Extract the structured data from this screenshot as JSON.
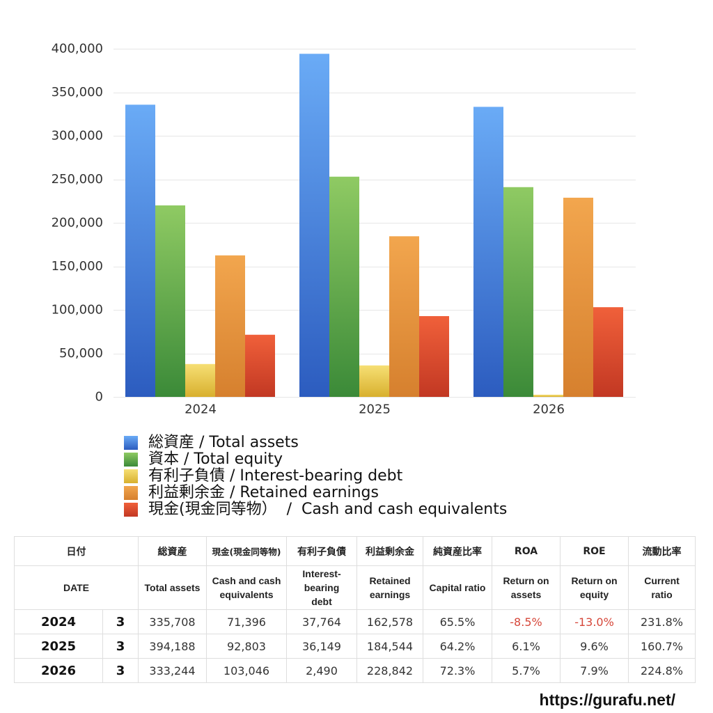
{
  "chart_data": {
    "type": "bar",
    "categories": [
      "2024",
      "2025",
      "2026"
    ],
    "series": [
      {
        "name": "総資産 / Total assets",
        "values": [
          335708,
          394188,
          333244
        ],
        "color_top": "#6aabf6",
        "color_bottom": "#2c5cbf"
      },
      {
        "name": "資本 / Total equity",
        "values": [
          220000,
          253000,
          241000
        ],
        "color_top": "#8fca63",
        "color_bottom": "#3b8a38"
      },
      {
        "name": "有利子負債 / Interest-bearing debt",
        "values": [
          37764,
          36149,
          2490
        ],
        "color_top": "#f6df74",
        "color_bottom": "#d8b02e"
      },
      {
        "name": "利益剰余金 / Retained earnings",
        "values": [
          162578,
          184544,
          228842
        ],
        "color_top": "#f2a64e",
        "color_bottom": "#d6802e"
      },
      {
        "name": "現金(現金同等物）  /  Cash and cash equivalents",
        "values": [
          71396,
          92803,
          103046
        ],
        "color_top": "#f0603a",
        "color_bottom": "#c23823"
      }
    ],
    "yticks": [
      0,
      50000,
      100000,
      150000,
      200000,
      250000,
      300000,
      350000,
      400000
    ],
    "ytick_labels": [
      "0",
      "50,000",
      "100,000",
      "150,000",
      "200,000",
      "250,000",
      "300,000",
      "350,000",
      "400,000"
    ],
    "ylim": [
      0,
      400000
    ],
    "grid": true,
    "legend": "bottom"
  },
  "table": {
    "columns": [
      {
        "ja": "日付",
        "en": "DATE"
      },
      {
        "ja": "総資産",
        "en": "Total assets"
      },
      {
        "ja": "現金(現金同等物)",
        "en": "Cash and cash equivalents"
      },
      {
        "ja": "有利子負債",
        "en": "Interest-bearing debt"
      },
      {
        "ja": "利益剰余金",
        "en": "Retained earnings"
      },
      {
        "ja": "純資産比率",
        "en": "Capital ratio"
      },
      {
        "ja": "ROA",
        "en": "Return on assets"
      },
      {
        "ja": "ROE",
        "en": "Return on equity"
      },
      {
        "ja": "流動比率",
        "en": "Current ratio"
      }
    ],
    "rows": [
      {
        "year": "2024",
        "month": "3",
        "cells": [
          "335,708",
          "71,396",
          "37,764",
          "162,578",
          "65.5%",
          "-8.5%",
          "-13.0%",
          "231.8%"
        ]
      },
      {
        "year": "2025",
        "month": "3",
        "cells": [
          "394,188",
          "92,803",
          "36,149",
          "184,544",
          "64.2%",
          "6.1%",
          "9.6%",
          "160.7%"
        ]
      },
      {
        "year": "2026",
        "month": "3",
        "cells": [
          "333,244",
          "103,046",
          "2,490",
          "228,842",
          "72.3%",
          "5.7%",
          "7.9%",
          "224.8%"
        ]
      }
    ],
    "negative_color": "#d6473a"
  },
  "footer": {
    "url": "https://gurafu.net/"
  }
}
